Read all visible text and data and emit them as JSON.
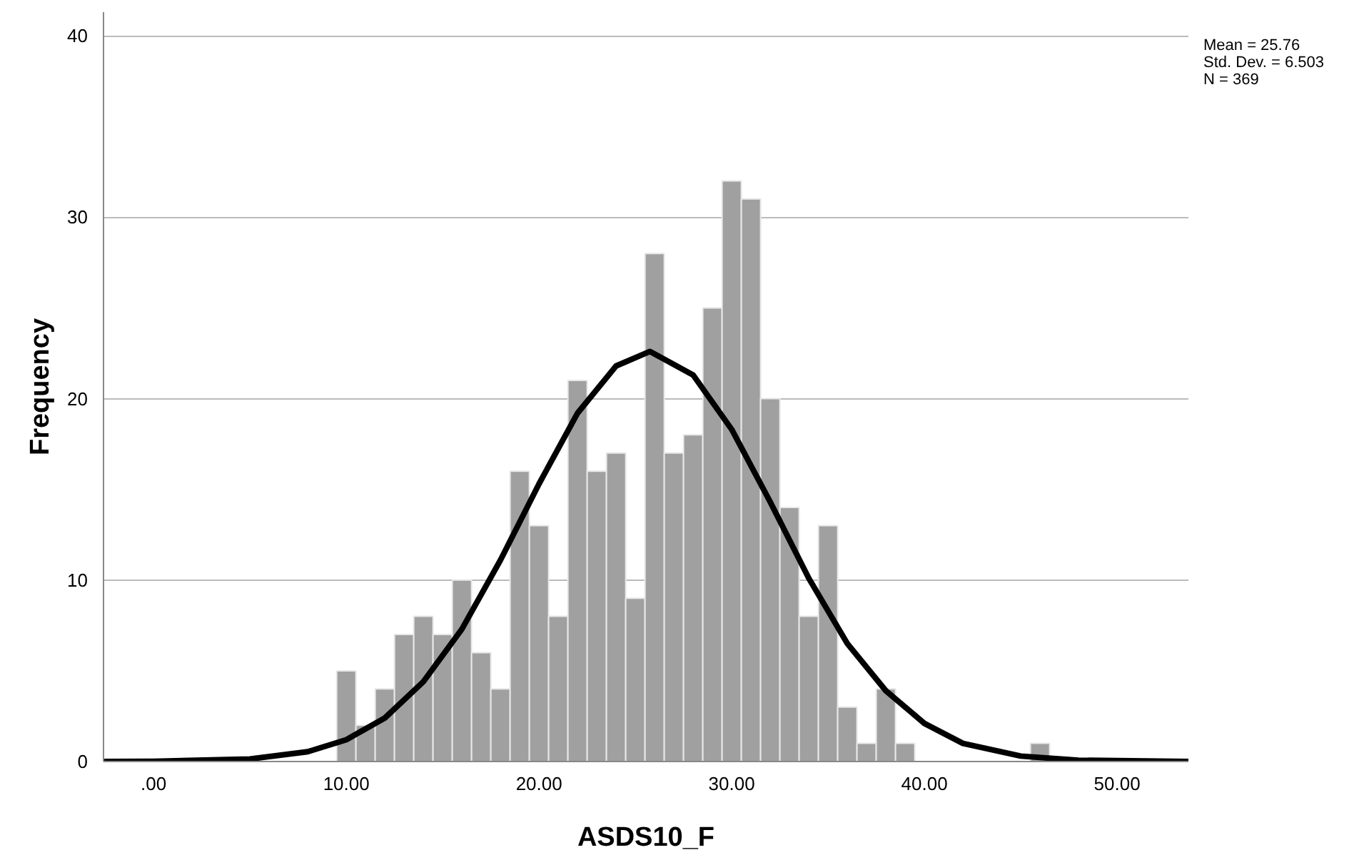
{
  "chart_data": {
    "type": "histogram",
    "xlabel": "ASDS10_F",
    "ylabel": "Frequency",
    "bins": [
      9.5,
      10.5,
      11.5,
      12.5,
      13.5,
      14.5,
      15.5,
      16.5,
      17.5,
      18.5,
      19.5,
      20.5,
      21.5,
      22.5,
      23.5,
      24.5,
      25.5,
      26.5,
      27.5,
      28.5,
      29.5,
      30.5,
      31.5,
      32.5,
      33.5,
      34.5,
      35.5,
      36.5,
      37.5,
      38.5,
      39.5,
      40.5,
      41.5,
      42.5,
      43.5,
      44.5,
      45.5,
      46.5
    ],
    "values": [
      5,
      2,
      4,
      7,
      8,
      7,
      10,
      6,
      4,
      16,
      13,
      8,
      21,
      16,
      17,
      9,
      28,
      17,
      18,
      25,
      32,
      31,
      20,
      14,
      8,
      13,
      3,
      1,
      4,
      1,
      0,
      0,
      0,
      0,
      0,
      0,
      1
    ],
    "color": "#a0a0a0",
    "series": [
      {
        "type": "line",
        "color": "#000000",
        "x": [
          -2.6,
          0,
          5,
          8,
          10,
          12,
          14,
          16,
          18,
          20,
          22,
          24,
          25.76,
          28,
          30,
          32,
          34,
          36,
          38,
          40,
          42,
          45,
          48,
          53.7
        ],
        "values": [
          0,
          0.01,
          0.14,
          0.54,
          1.2,
          2.4,
          4.4,
          7.3,
          11.1,
          15.3,
          19.2,
          21.8,
          22.6,
          21.3,
          18.3,
          14.3,
          10.1,
          6.5,
          3.9,
          2.1,
          1.0,
          0.3,
          0.07,
          0
        ]
      }
    ],
    "xlim": [
      -2.6,
      53.7
    ],
    "ylim": [
      0,
      41.3
    ],
    "xticks": [
      {
        "value": 0,
        "label": ".00"
      },
      {
        "value": 10,
        "label": "10.00"
      },
      {
        "value": 20,
        "label": "20.00"
      },
      {
        "value": 30,
        "label": "30.00"
      },
      {
        "value": 40,
        "label": "40.00"
      },
      {
        "value": 50,
        "label": "50.00"
      }
    ],
    "yticks": [
      0,
      10,
      20,
      30,
      40
    ],
    "grid": "y",
    "annotations": [
      "Mean = 25.76",
      "Std. Dev. = 6.503",
      "N = 369"
    ]
  }
}
